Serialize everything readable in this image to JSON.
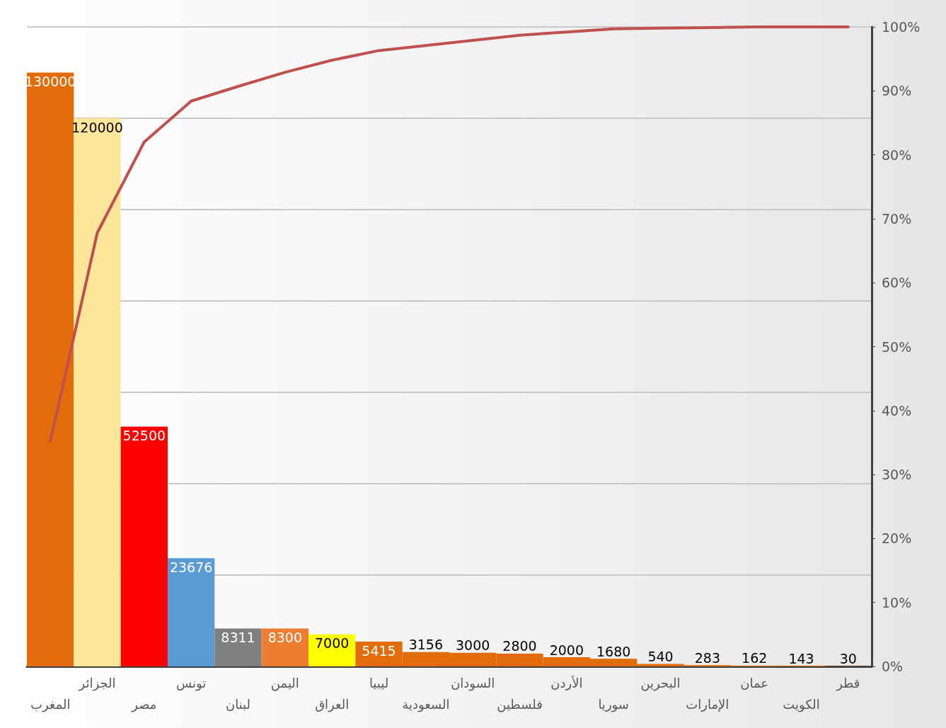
{
  "chart_data": {
    "type": "bar",
    "categories": [
      "المغرب",
      "الجزائر",
      "مصر",
      "تونس",
      "لبنان",
      "اليمن",
      "العراق",
      "ليبيا",
      "السعودية",
      "السودان",
      "فلسطين",
      "الأردن",
      "سوريا",
      "البحرين",
      "الإمارات",
      "عمان",
      "الكويت",
      "قطر"
    ],
    "series": [
      {
        "values": [
          130000,
          120000,
          52500,
          23676,
          8311,
          8300,
          7000,
          5415,
          3156,
          3000,
          2800,
          2000,
          1680,
          540,
          283,
          162,
          143,
          30
        ],
        "colors": [
          "#e36c0a",
          "#fde59a",
          "#ff0000",
          "#5b9bd5",
          "#7f7f7f",
          "#ed7d31",
          "#ffff00",
          "#e36c0a",
          "#e36c0a",
          "#e36c0a",
          "#e36c0a",
          "#e36c0a",
          "#e36c0a",
          "#e36c0a",
          "#e36c0a",
          "#e36c0a",
          "#e36c0a",
          "#e36c0a"
        ],
        "data_labels": true
      },
      {
        "type": "line",
        "axis": "y2",
        "color": "#c0504d",
        "values": [
          35.2,
          67.8,
          82.0,
          88.4,
          90.7,
          92.9,
          94.8,
          96.3,
          97.1,
          97.9,
          98.7,
          99.2,
          99.7,
          99.8,
          99.9,
          100,
          100,
          100
        ],
        "marker": "none",
        "line_style": "solid"
      }
    ],
    "ylim": [
      0,
      140000
    ],
    "yticks": [
      {
        "value": 0,
        "label": null
      },
      {
        "value": 20000,
        "label": null
      },
      {
        "value": 40000,
        "label": null
      },
      {
        "value": 60000,
        "label": null
      },
      {
        "value": 80000,
        "label": null
      },
      {
        "value": 100000,
        "label": null
      },
      {
        "value": 120000,
        "label": null
      },
      {
        "value": 140000,
        "label": null
      }
    ],
    "y2lim": [
      0,
      100
    ],
    "y2ticks": [
      {
        "value": 0,
        "label": "0%"
      },
      {
        "value": 10,
        "label": "10%"
      },
      {
        "value": 20,
        "label": "20%"
      },
      {
        "value": 30,
        "label": "30%"
      },
      {
        "value": 40,
        "label": "40%"
      },
      {
        "value": 50,
        "label": "50%"
      },
      {
        "value": 60,
        "label": "60%"
      },
      {
        "value": 70,
        "label": "70%"
      },
      {
        "value": 80,
        "label": "80%"
      },
      {
        "value": 90,
        "label": "90%"
      },
      {
        "value": 100,
        "label": "100%"
      }
    ],
    "grid": "y"
  }
}
